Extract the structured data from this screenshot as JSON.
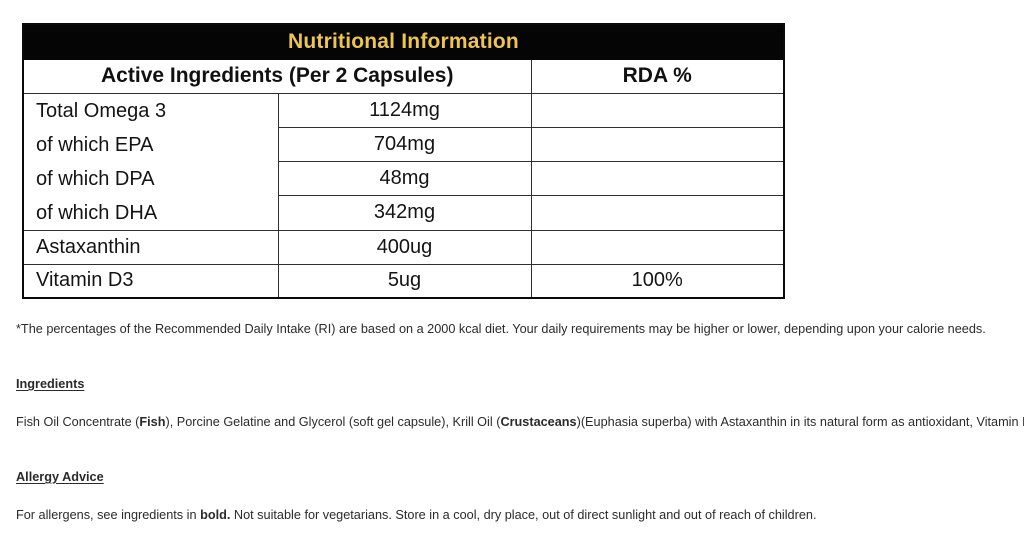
{
  "table": {
    "title": "Nutritional Information",
    "title_color": "#EFC551",
    "header_bg": "#050505",
    "columns": {
      "active_ingredients": "Active Ingredients (Per 2 Capsules)",
      "rda": "RDA %"
    },
    "omega_group": {
      "labels": [
        "Total Omega 3",
        "of which EPA",
        "of which DPA",
        "of which DHA"
      ],
      "values": [
        "1124mg",
        "704mg",
        "48mg",
        "342mg"
      ],
      "rda": [
        "",
        "",
        "",
        ""
      ]
    },
    "rows": [
      {
        "label": "Astaxanthin",
        "value": "400ug",
        "rda": ""
      },
      {
        "label": "Vitamin D3",
        "value": "5ug",
        "rda": "100%"
      }
    ]
  },
  "footnote": "*The percentages of the Recommended Daily Intake (RI) are based on a 2000 kcal diet. Your daily requirements may be higher or lower, depending upon your calorie needs.",
  "sections": {
    "ingredients": {
      "heading": "Ingredients",
      "segments": [
        {
          "text": "Fish Oil Concentrate (",
          "bold": false
        },
        {
          "text": "Fish",
          "bold": true
        },
        {
          "text": "), Porcine Gelatine and Glycerol (soft gel capsule), Krill Oil (",
          "bold": false
        },
        {
          "text": "Crustaceans",
          "bold": true
        },
        {
          "text": ")(Euphasia superba) with Astaxanthin in its natural form as antioxidant, Vitamin D (cholicalciferol).",
          "bold": false
        }
      ]
    },
    "allergy": {
      "heading": "Allergy Advice",
      "segments": [
        {
          "text": "For allergens, see ingredients in ",
          "bold": false
        },
        {
          "text": "bold.",
          "bold": true
        },
        {
          "text": " Not suitable for vegetarians. Store in a cool, dry place, out of direct sunlight and out of reach of children.",
          "bold": false
        }
      ]
    }
  }
}
